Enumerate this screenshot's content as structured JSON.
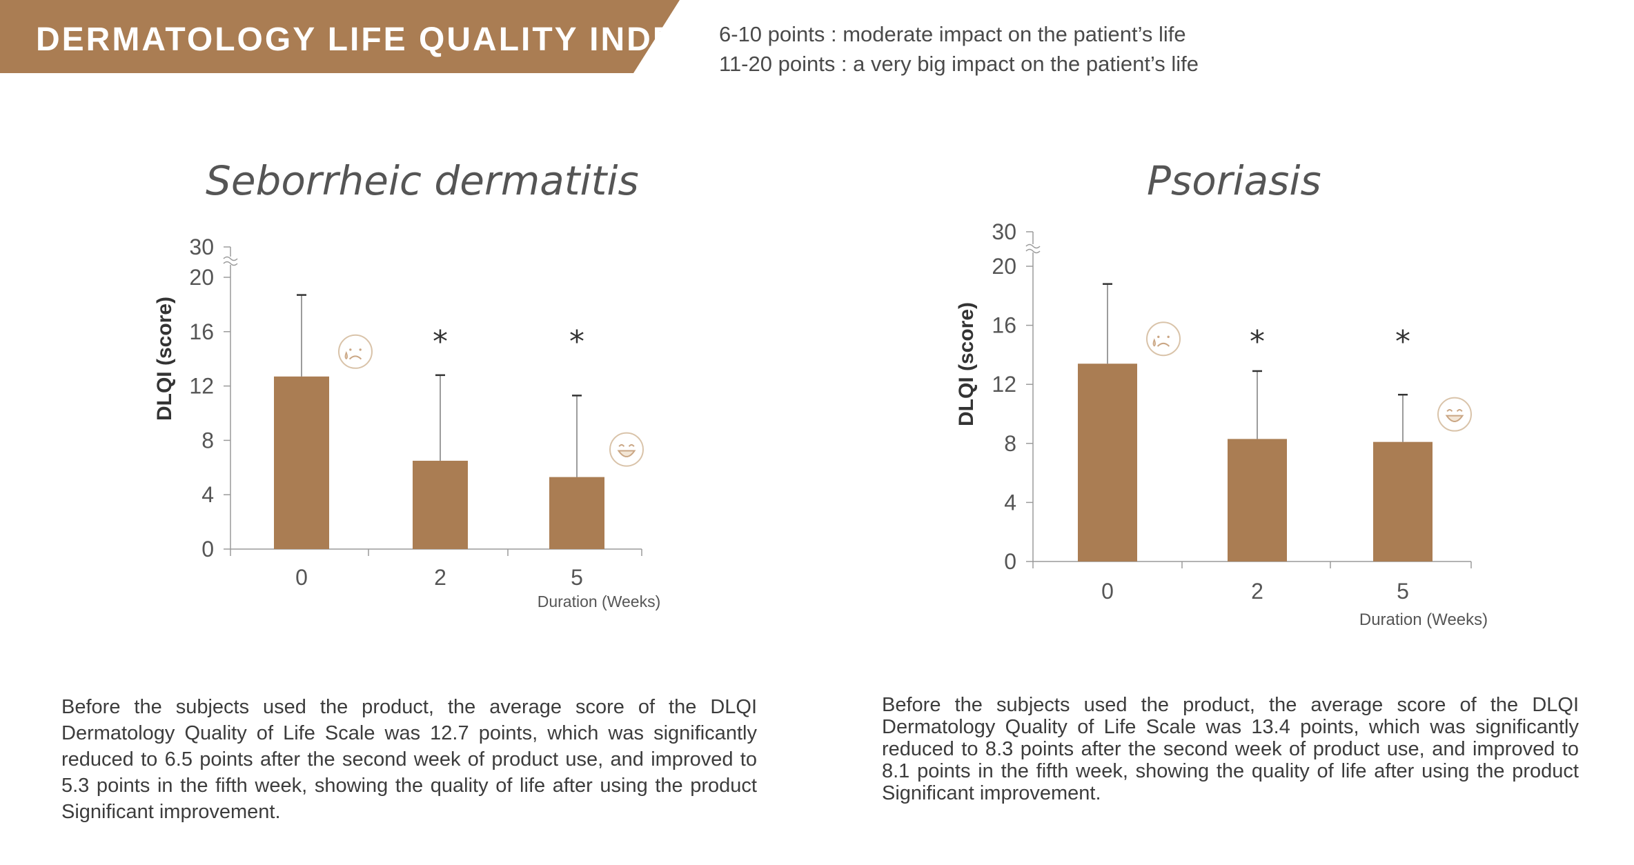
{
  "header": {
    "title": "DERMATOLOGY LIFE QUALITY INDEX",
    "accent_color": "#aa7d53"
  },
  "legend": {
    "line1": "6-10 points : moderate impact on the patient’s life",
    "line2": "11-20 points : a very big impact  on the patient’s life"
  },
  "chart_data": [
    {
      "type": "bar",
      "title": "Seborrheic dermatitis",
      "xlabel": "Duration (Weeks)",
      "ylabel": "DLQI (score)",
      "categories": [
        "0",
        "2",
        "5"
      ],
      "values": [
        12.7,
        6.5,
        5.3
      ],
      "error_upper": [
        18.7,
        12.8,
        11.3
      ],
      "significance": [
        "",
        "*",
        "*"
      ],
      "y_ticks": [
        "0",
        "4",
        "8",
        "12",
        "16",
        "20",
        "30"
      ],
      "ylim": [
        0,
        30
      ],
      "axis_break": true,
      "bar_color": "#aa7d53",
      "face_icons": [
        "sad-face-icon",
        "",
        "happy-face-icon"
      ]
    },
    {
      "type": "bar",
      "title": "Psoriasis",
      "xlabel": "Duration (Weeks)",
      "ylabel": "DLQI (score)",
      "categories": [
        "0",
        "2",
        "5"
      ],
      "values": [
        13.4,
        8.3,
        8.1
      ],
      "error_upper": [
        18.8,
        12.9,
        11.3
      ],
      "significance": [
        "",
        "*",
        "*"
      ],
      "y_ticks": [
        "0",
        "4",
        "8",
        "12",
        "16",
        "20",
        "30"
      ],
      "ylim": [
        0,
        30
      ],
      "axis_break": true,
      "bar_color": "#aa7d53",
      "face_icons": [
        "sad-face-icon",
        "",
        "happy-face-icon"
      ]
    }
  ],
  "descriptions": {
    "left": "Before the subjects used the product, the average score of the DLQI Dermatology Quality of Life Scale was 12.7 points, which was significantly reduced to 6.5 points after the second week of product use, and improved to 5.3 points in the fifth week, showing the quality of life after using the product Significant improvement.",
    "right": "Before the subjects used the product, the average score of the DLQI Dermatology Quality of Life Scale was 13.4 points, which was significantly reduced to 8.3 points after the second week of product use, and improved to 8.1 points in the fifth week, showing the quality of life after using the product Significant improvement."
  }
}
